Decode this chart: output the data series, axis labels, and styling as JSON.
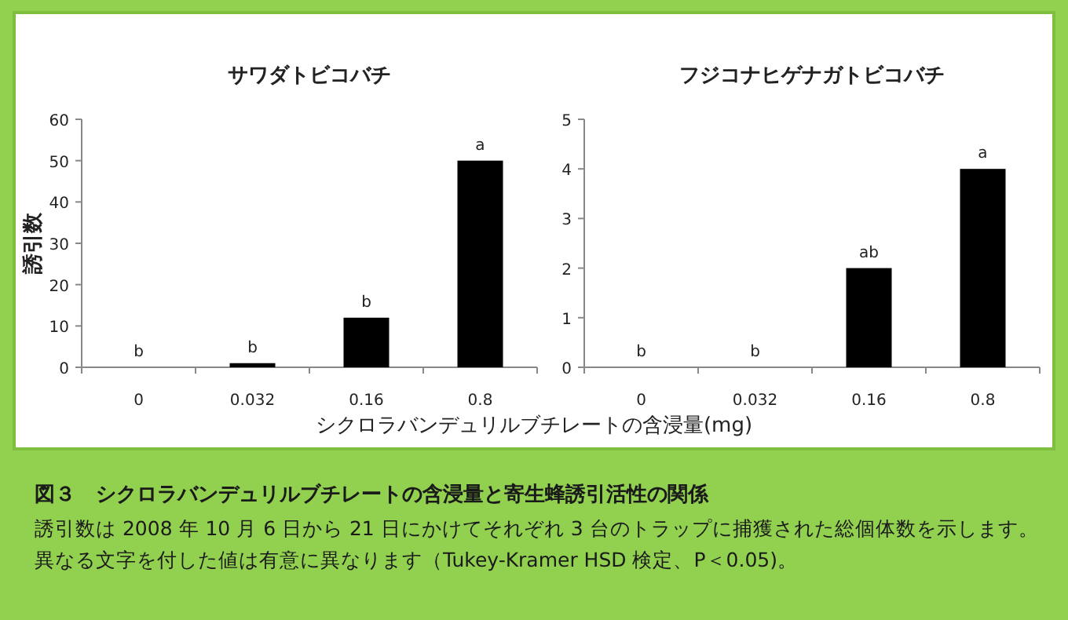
{
  "chart_data": [
    {
      "type": "bar",
      "title": "サワダトビコバチ",
      "ylabel": "誘引数",
      "xlabel": "シクロラバンデュリルブチレートの含浸量(mg)",
      "categories": [
        "0",
        "0.032",
        "0.16",
        "0.8"
      ],
      "values": [
        0,
        1,
        12,
        50
      ],
      "color": "#000000",
      "value_labels": [
        "b",
        "b",
        "b",
        "a"
      ],
      "ylim": [
        0,
        60
      ],
      "yticks": [
        0,
        10,
        20,
        30,
        40,
        50,
        60
      ],
      "grid": false
    },
    {
      "type": "bar",
      "title": "フジコナヒゲナガトビコバチ",
      "categories": [
        "0",
        "0.032",
        "0.16",
        "0.8"
      ],
      "values": [
        0,
        0,
        2,
        4
      ],
      "color": "#000000",
      "value_labels": [
        "b",
        "b",
        "ab",
        "a"
      ],
      "ylim": [
        0,
        5
      ],
      "yticks": [
        0,
        1,
        2,
        3,
        4,
        5
      ],
      "grid": false
    },
    {
      "type": "other",
      "title": "図３　シクロラバンデュリルブチレートの含浸量と寄生蜂誘引活性の関係",
      "annotations": [
        "誘引数は 2008 年 10 月 6 日から 21 日にかけてそれぞれ 3 台のトラップに捕獲された総個体数を示します。異なる文字を付した値は有意に異なります（Tukey-Kramer HSD 検定、P＜0.05)。"
      ]
    }
  ]
}
